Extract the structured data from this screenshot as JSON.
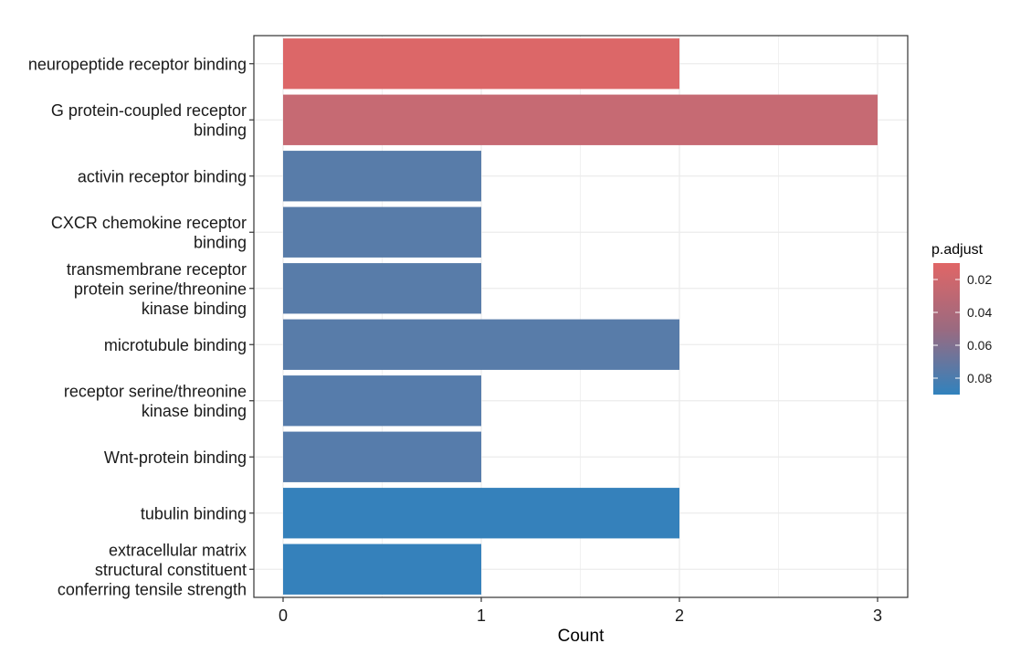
{
  "chart_data": {
    "type": "bar",
    "orientation": "horizontal",
    "xlabel": "Count",
    "xlim": [
      0,
      3
    ],
    "x_ticks": [
      "0",
      "1",
      "2",
      "3"
    ],
    "grid": true,
    "legend_position": "right",
    "categories": [
      {
        "lines": [
          "neuropeptide receptor binding"
        ],
        "count": 2,
        "p_adjust": 0.012
      },
      {
        "lines": [
          "G protein-coupled receptor",
          "binding"
        ],
        "count": 3,
        "p_adjust": 0.022
      },
      {
        "lines": [
          "activin receptor binding"
        ],
        "count": 1,
        "p_adjust": 0.072
      },
      {
        "lines": [
          "CXCR chemokine receptor",
          "binding"
        ],
        "count": 1,
        "p_adjust": 0.072
      },
      {
        "lines": [
          "transmembrane receptor",
          "protein serine/threonine",
          "kinase binding"
        ],
        "count": 1,
        "p_adjust": 0.072
      },
      {
        "lines": [
          "microtubule binding"
        ],
        "count": 2,
        "p_adjust": 0.072
      },
      {
        "lines": [
          "receptor serine/threonine",
          "kinase binding"
        ],
        "count": 1,
        "p_adjust": 0.073
      },
      {
        "lines": [
          "Wnt-protein binding"
        ],
        "count": 1,
        "p_adjust": 0.073
      },
      {
        "lines": [
          "tubulin binding"
        ],
        "count": 2,
        "p_adjust": 0.088
      },
      {
        "lines": [
          "extracellular matrix",
          "structural constituent",
          "conferring tensile strength"
        ],
        "count": 1,
        "p_adjust": 0.088
      }
    ],
    "legend": {
      "title": "p.adjust",
      "range": [
        0.01,
        0.09
      ],
      "ticks": [
        0.02,
        0.04,
        0.06,
        0.08
      ],
      "tick_labels": [
        "0.02",
        "0.04",
        "0.06",
        "0.08"
      ],
      "low_color": "#e06666",
      "high_color": "#3182bd"
    }
  }
}
